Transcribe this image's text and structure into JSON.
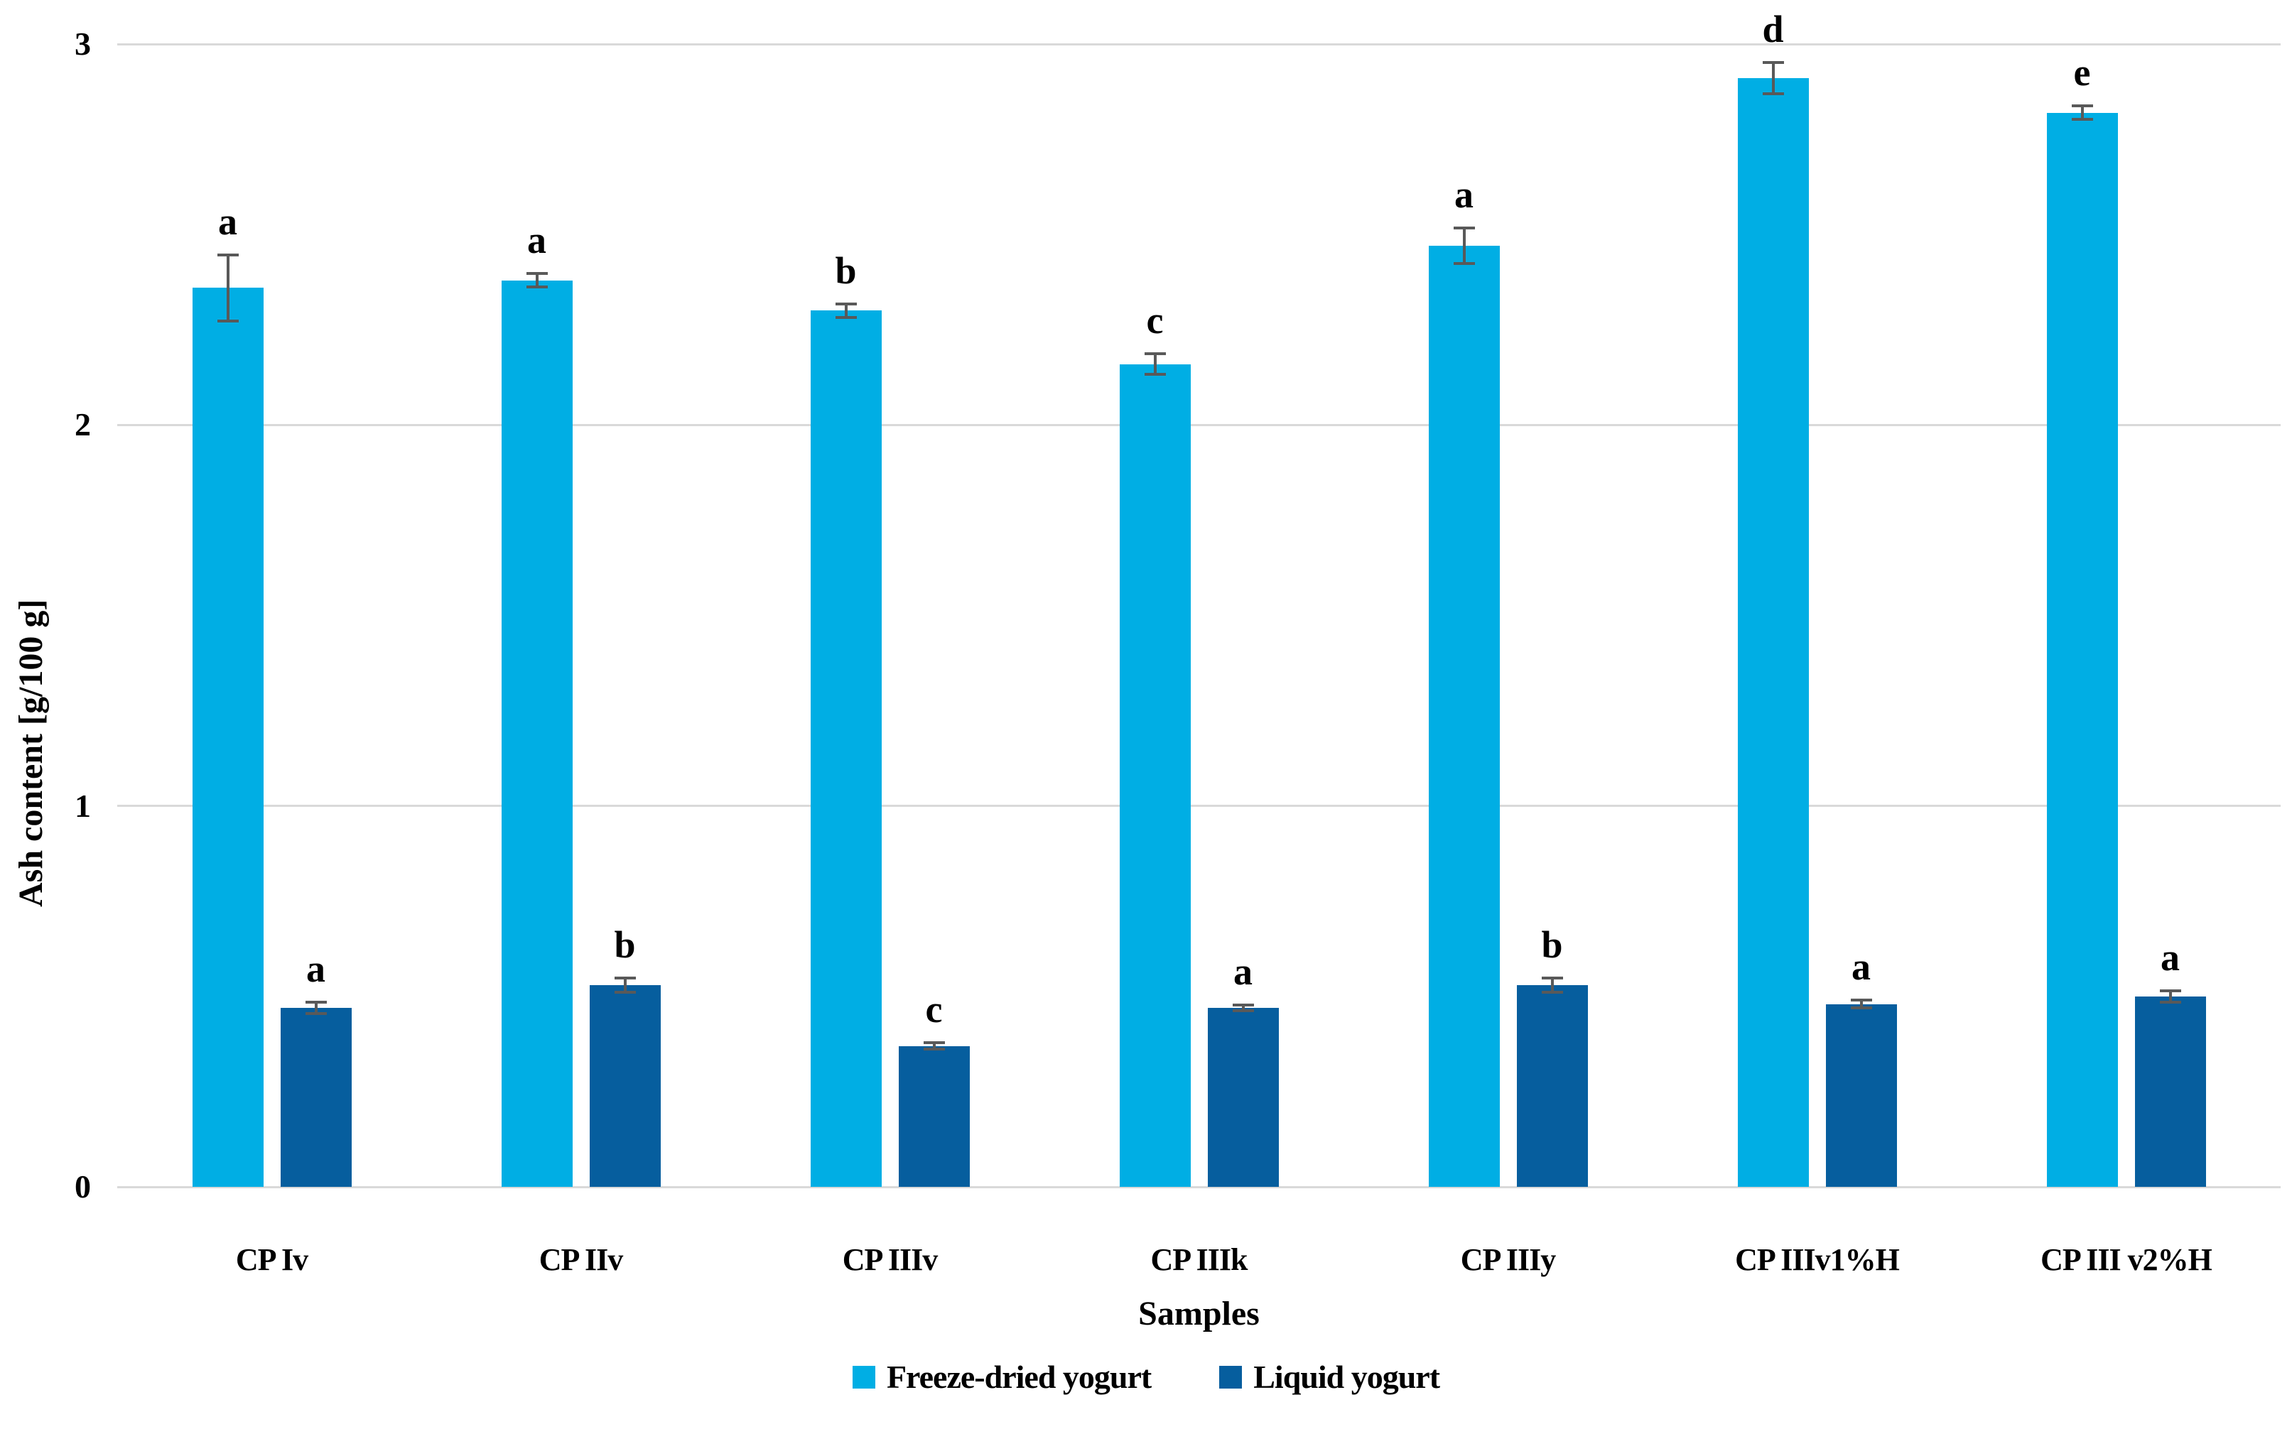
{
  "chart_data": {
    "type": "bar",
    "title": "",
    "xlabel": "Samples",
    "ylabel": "Ash content [g/100 g]",
    "ylim": [
      0,
      3
    ],
    "yticks": [
      0,
      1,
      2,
      3
    ],
    "grid": true,
    "legend_position": "bottom",
    "categories": [
      "CP Iv",
      "CP IIv",
      "CP IIIv",
      "CP IIIk",
      "CP IIIy",
      "CP IIIv1%H",
      "CP III v2%H"
    ],
    "series": [
      {
        "name": "Freeze-dried yogurt",
        "color": "#00AEE4",
        "values": [
          2.36,
          2.38,
          2.3,
          2.16,
          2.47,
          2.91,
          2.82
        ],
        "errors": [
          0.09,
          0.022,
          0.022,
          0.03,
          0.05,
          0.045,
          0.022
        ],
        "letters": [
          "a",
          "a",
          "b",
          "c",
          "a",
          "d",
          "e"
        ]
      },
      {
        "name": "Liquid yogurt",
        "color": "#065E9E",
        "values": [
          0.47,
          0.53,
          0.37,
          0.47,
          0.53,
          0.48,
          0.5
        ],
        "errors": [
          0.018,
          0.022,
          0.012,
          0.012,
          0.022,
          0.014,
          0.018
        ],
        "letters": [
          "a",
          "b",
          "c",
          "a",
          "b",
          "a",
          "a"
        ]
      }
    ]
  },
  "style": {
    "gridline_color": "#d9d9d9",
    "error_bar_color": "#595959",
    "text_color": "#000000",
    "background": "#ffffff"
  }
}
